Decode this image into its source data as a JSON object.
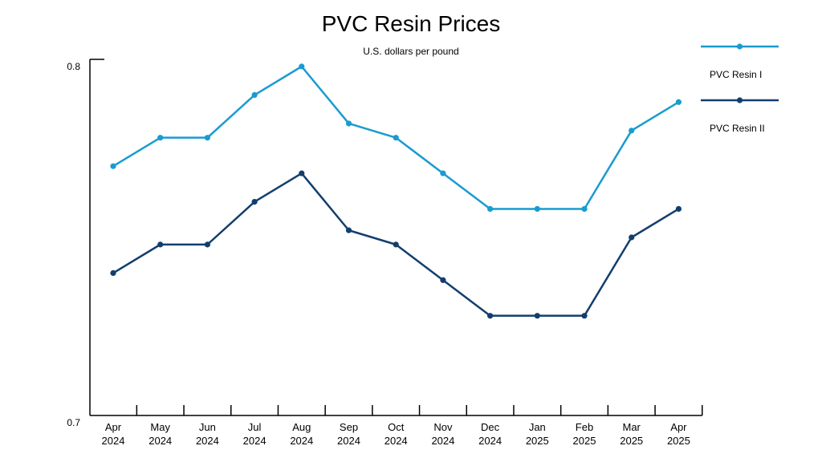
{
  "chart_data": {
    "type": "line",
    "title": "PVC Resin Prices",
    "subtitle": "U.S. dollars per pound",
    "xlabel": "",
    "ylabel": "",
    "ylim": [
      0.7,
      0.8
    ],
    "y_ticks": [
      "0.8",
      "0.7"
    ],
    "grid": false,
    "legend_position": "top-right",
    "categories": [
      [
        "Apr",
        "2024"
      ],
      [
        "May",
        "2024"
      ],
      [
        "Jun",
        "2024"
      ],
      [
        "Jul",
        "2024"
      ],
      [
        "Aug",
        "2024"
      ],
      [
        "Sep",
        "2024"
      ],
      [
        "Oct",
        "2024"
      ],
      [
        "Nov",
        "2024"
      ],
      [
        "Dec",
        "2024"
      ],
      [
        "Jan",
        "2025"
      ],
      [
        "Feb",
        "2025"
      ],
      [
        "Mar",
        "2025"
      ],
      [
        "Apr",
        "2025"
      ]
    ],
    "series": [
      {
        "name": "PVC Resin I",
        "color": "#1a9bd1",
        "values": [
          0.77,
          0.778,
          0.778,
          0.79,
          0.798,
          0.782,
          0.778,
          0.768,
          0.758,
          0.758,
          0.758,
          0.78,
          0.788
        ]
      },
      {
        "name": "PVC Resin II",
        "color": "#123e6e",
        "values": [
          0.74,
          0.748,
          0.748,
          0.76,
          0.768,
          0.752,
          0.748,
          0.738,
          0.728,
          0.728,
          0.728,
          0.75,
          0.758
        ]
      }
    ]
  }
}
